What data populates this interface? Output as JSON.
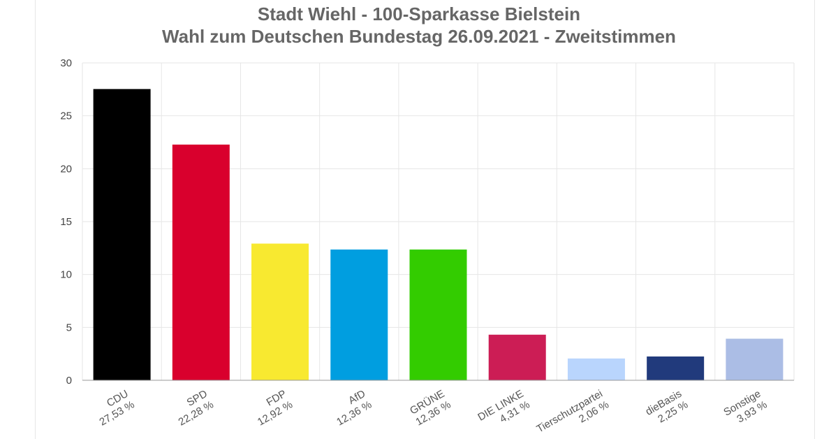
{
  "chart_data": {
    "type": "bar",
    "title": "Stadt Wiehl - 100-Sparkasse Bielstein",
    "subtitle": "Wahl zum Deutschen Bundestag 26.09.2021  - Zweitstimmen",
    "categories": [
      "CDU",
      "SPD",
      "FDP",
      "AfD",
      "GRÜNE",
      "DIE LINKE",
      "Tierschutzpartei",
      "dieBasis",
      "Sonstige"
    ],
    "value_labels": [
      "27,53 %",
      "22,28 %",
      "12,92 %",
      "12,36 %",
      "12,36 %",
      "4,31 %",
      "2,06 %",
      "2,25 %",
      "3,93 %"
    ],
    "values": [
      27.53,
      22.28,
      12.92,
      12.36,
      12.36,
      4.31,
      2.06,
      2.25,
      3.93
    ],
    "colors": [
      "#000000",
      "#d9002d",
      "#f8e930",
      "#009ee0",
      "#33cc00",
      "#cc1d55",
      "#b9d5fd",
      "#213a7c",
      "#abbde5"
    ],
    "yticks": [
      0,
      5,
      10,
      15,
      20,
      25,
      30
    ],
    "ylim": [
      0,
      30
    ],
    "xlabel": "",
    "ylabel": "",
    "grid": true,
    "legend": "none"
  }
}
